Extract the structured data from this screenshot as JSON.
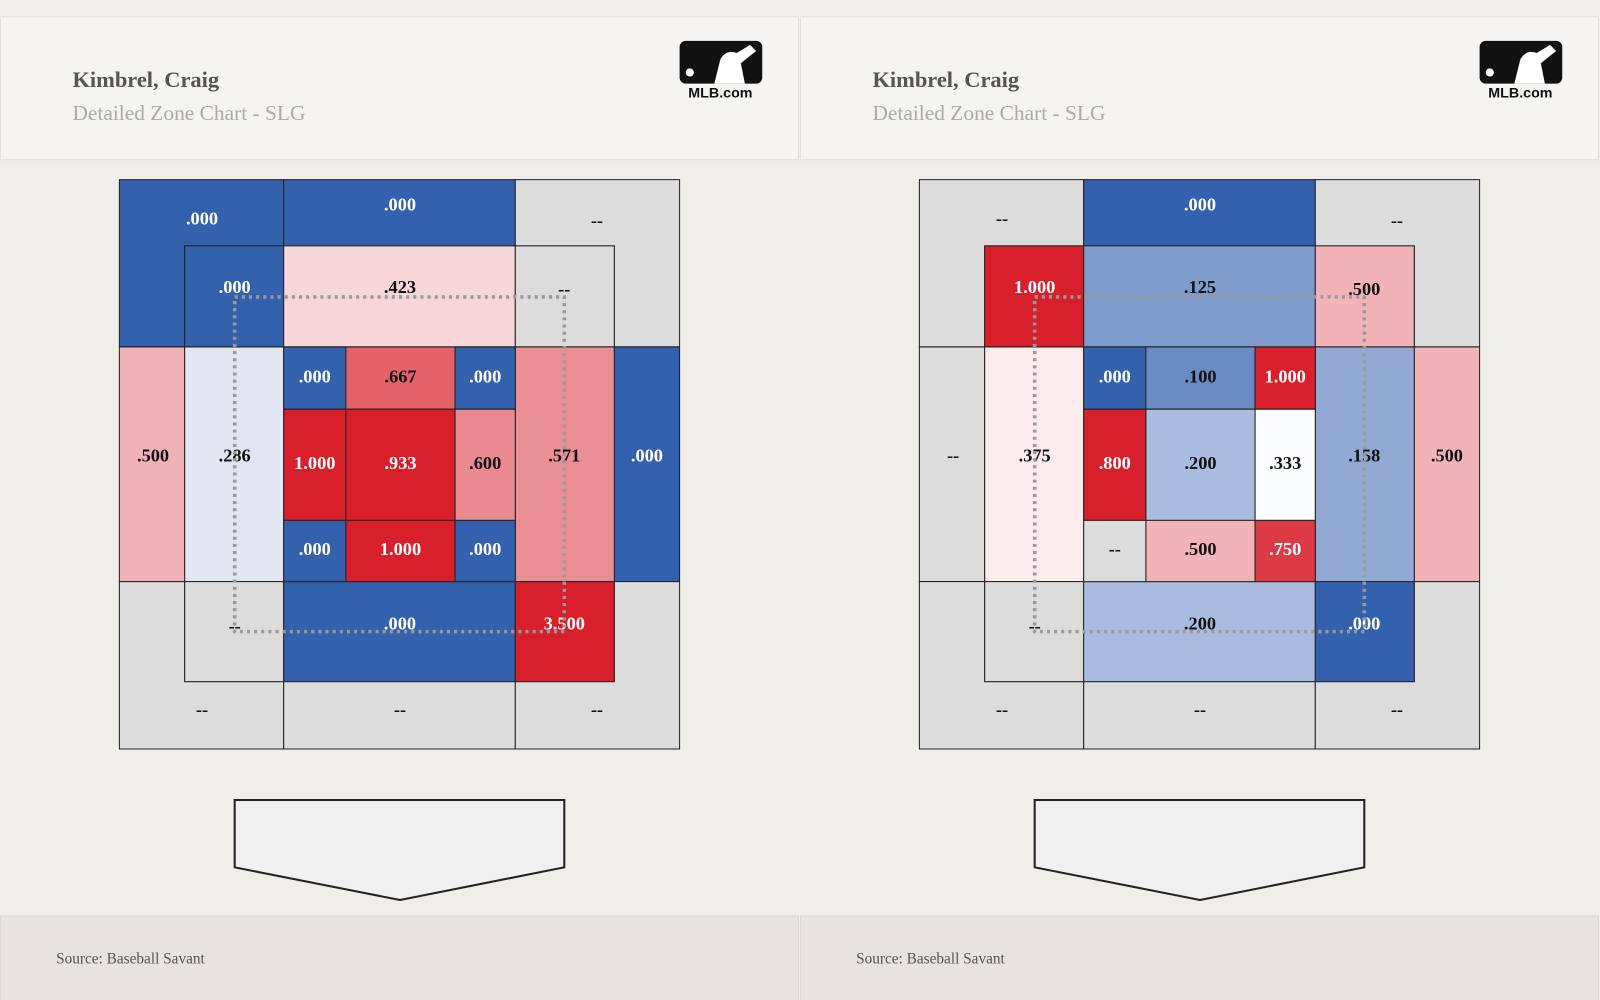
{
  "panels": [
    {
      "title": "Kimbrel, Craig",
      "subtitle": "Detailed Zone Chart - SLG",
      "logo_text": "MLB.com",
      "source": "Source: Baseball Savant",
      "cells": [
        {
          "label": ".000",
          "color": "#3461ae"
        },
        {
          "label": ".000",
          "color": "#3461ae"
        },
        {
          "label": "--",
          "color": "#dcdcdc"
        },
        {
          "label": ".500",
          "color": "#f2b3b8"
        },
        {
          "label": ".000",
          "color": "#3461ae"
        },
        {
          "label": "--",
          "color": "#dcdcdc"
        },
        {
          "label": "--",
          "color": "#dcdcdc"
        },
        {
          "label": "--",
          "color": "#dcdcdc"
        },
        {
          "label": ".000",
          "color": "#3461ae"
        },
        {
          "label": ".423",
          "color": "#f7d6d9"
        },
        {
          "label": "--",
          "color": "#dcdcdc"
        },
        {
          "label": ".286",
          "color": "#e1e6f2"
        },
        {
          "label": ".571",
          "color": "#ea8f96"
        },
        {
          "label": "--",
          "color": "#dcdcdc"
        },
        {
          "label": ".000",
          "color": "#3461ae"
        },
        {
          "label": "3.500",
          "color": "#d7202b"
        },
        {
          "label": ".000",
          "color": "#3461ae"
        },
        {
          "label": ".667",
          "color": "#e5626b"
        },
        {
          "label": ".000",
          "color": "#3461ae"
        },
        {
          "label": "1.000",
          "color": "#d7202b"
        },
        {
          "label": ".933",
          "color": "#d7202b"
        },
        {
          "label": ".600",
          "color": "#ea8a90"
        },
        {
          "label": ".000",
          "color": "#3461ae"
        },
        {
          "label": "1.000",
          "color": "#d7202b"
        },
        {
          "label": ".000",
          "color": "#3461ae"
        }
      ]
    },
    {
      "title": "Kimbrel, Craig",
      "subtitle": "Detailed Zone Chart - SLG",
      "logo_text": "MLB.com",
      "source": "Source: Baseball Savant",
      "cells": [
        {
          "label": "--",
          "color": "#dcdcdc"
        },
        {
          "label": ".000",
          "color": "#3461ae"
        },
        {
          "label": "--",
          "color": "#dcdcdc"
        },
        {
          "label": "--",
          "color": "#dcdcdc"
        },
        {
          "label": ".500",
          "color": "#f2b3b8"
        },
        {
          "label": "--",
          "color": "#dcdcdc"
        },
        {
          "label": "--",
          "color": "#dcdcdc"
        },
        {
          "label": "--",
          "color": "#dcdcdc"
        },
        {
          "label": "1.000",
          "color": "#d7202b"
        },
        {
          "label": ".125",
          "color": "#7f9bcc"
        },
        {
          "label": ".500",
          "color": "#f2b3b8"
        },
        {
          "label": ".375",
          "color": "#fcecee"
        },
        {
          "label": ".158",
          "color": "#91a9d3"
        },
        {
          "label": "--",
          "color": "#dcdcdc"
        },
        {
          "label": ".200",
          "color": "#a9bcdf"
        },
        {
          "label": ".000",
          "color": "#3461ae"
        },
        {
          "label": ".000",
          "color": "#3461ae"
        },
        {
          "label": ".100",
          "color": "#6b8bc5"
        },
        {
          "label": "1.000",
          "color": "#d7202b"
        },
        {
          "label": ".800",
          "color": "#d7202b"
        },
        {
          "label": ".200",
          "color": "#a9bcdf"
        },
        {
          "label": ".333",
          "color": "#fbfcff"
        },
        {
          "label": "--",
          "color": "#dcdcdc"
        },
        {
          "label": ".500",
          "color": "#f2b3b8"
        },
        {
          "label": ".750",
          "color": "#dc3a45"
        }
      ]
    }
  ]
}
